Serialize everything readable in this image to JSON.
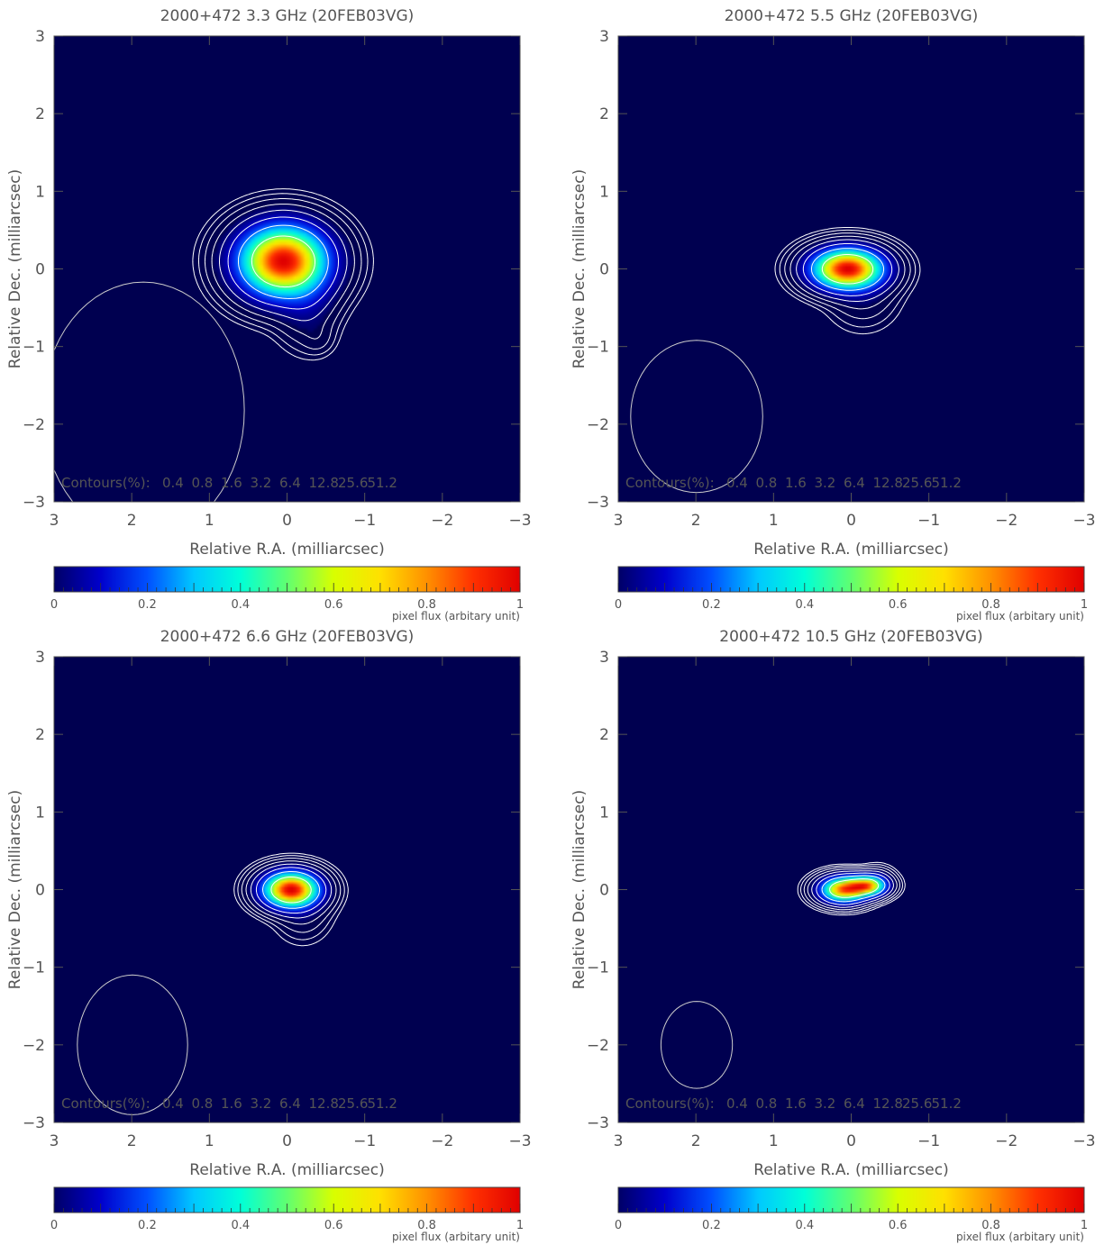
{
  "colorbar": {
    "ticks": [
      "0",
      "0.2",
      "0.4",
      "0.6",
      "0.8",
      "1"
    ],
    "label": "pixel flux (arbitary unit)",
    "stops": [
      "#000066",
      "#0000cc",
      "#0050ff",
      "#00c8ff",
      "#00ffd8",
      "#60ff70",
      "#d8ff00",
      "#ffe000",
      "#ff9000",
      "#ff3000",
      "#e00000"
    ]
  },
  "colors": {
    "background": "#000050",
    "contour": "#ffffff",
    "beam": "#cccccc",
    "text": "#555555"
  },
  "chart_data": [
    {
      "type": "heatmap",
      "title": "2000+472  3.3 GHz   (20FEB03VG)",
      "xlabel": "Relative R.A. (milliarcsec)",
      "ylabel": "Relative Dec. (milliarcsec)",
      "xlim": [
        3,
        -3
      ],
      "ylim": [
        -3,
        3
      ],
      "xticks": [
        "3",
        "2",
        "1",
        "0",
        "−1",
        "−2",
        "−3"
      ],
      "yticks": [
        "−3",
        "−2",
        "−1",
        "0",
        "1",
        "2",
        "3"
      ],
      "contours_label": "Contours(%):",
      "contour_levels": [
        0.4,
        0.8,
        1.6,
        3.2,
        6.4,
        12.8,
        25.6,
        51.2
      ],
      "beam": {
        "ra": 1.85,
        "dec": -1.82,
        "a": 1.3,
        "b": 1.65
      },
      "components": [
        {
          "ra": 0.05,
          "dec": 0.1,
          "sa": 0.35,
          "sd": 0.28,
          "amp": 1.0
        },
        {
          "ra": -0.25,
          "dec": -0.45,
          "sa": 0.22,
          "sd": 0.3,
          "amp": 0.06
        },
        {
          "ra": -0.4,
          "dec": -0.9,
          "sa": 0.12,
          "sd": 0.12,
          "amp": 0.015
        }
      ]
    },
    {
      "type": "heatmap",
      "title": "2000+472  5.5 GHz   (20FEB03VG)",
      "xlabel": "Relative R.A. (milliarcsec)",
      "ylabel": "Relative Dec. (milliarcsec)",
      "xlim": [
        3,
        -3
      ],
      "ylim": [
        -3,
        3
      ],
      "xticks": [
        "3",
        "2",
        "1",
        "0",
        "−1",
        "−2",
        "−3"
      ],
      "yticks": [
        "−3",
        "−2",
        "−1",
        "0",
        "1",
        "2",
        "3"
      ],
      "contours_label": "Contours(%):",
      "contour_levels": [
        0.4,
        0.8,
        1.6,
        3.2,
        6.4,
        12.8,
        25.6,
        51.2
      ],
      "beam": {
        "ra": 1.99,
        "dec": -1.9,
        "a": 0.85,
        "b": 0.98
      },
      "components": [
        {
          "ra": 0.05,
          "dec": 0.0,
          "sa": 0.28,
          "sd": 0.16,
          "amp": 1.0
        },
        {
          "ra": -0.15,
          "dec": -0.3,
          "sa": 0.25,
          "sd": 0.25,
          "amp": 0.04
        }
      ]
    },
    {
      "type": "heatmap",
      "title": "2000+472  6.6 GHz   (20FEB03VG)",
      "xlabel": "Relative R.A. (milliarcsec)",
      "ylabel": "Relative Dec. (milliarcsec)",
      "xlim": [
        3,
        -3
      ],
      "ylim": [
        -3,
        3
      ],
      "xticks": [
        "3",
        "2",
        "1",
        "0",
        "−1",
        "−2",
        "−3"
      ],
      "yticks": [
        "−3",
        "−2",
        "−1",
        "0",
        "1",
        "2",
        "3"
      ],
      "contours_label": "Contours(%):",
      "contour_levels": [
        0.4,
        0.8,
        1.6,
        3.2,
        6.4,
        12.8,
        25.6,
        51.2
      ],
      "beam": {
        "ra": 1.99,
        "dec": -2.0,
        "a": 0.71,
        "b": 0.9
      },
      "components": [
        {
          "ra": -0.05,
          "dec": 0.0,
          "sa": 0.22,
          "sd": 0.14,
          "amp": 1.0
        },
        {
          "ra": -0.2,
          "dec": -0.25,
          "sa": 0.2,
          "sd": 0.22,
          "amp": 0.04
        }
      ]
    },
    {
      "type": "heatmap",
      "title": "2000+472  10.5 GHz (20FEB03VG)",
      "xlabel": "Relative R.A. (milliarcsec)",
      "ylabel": "Relative Dec. (milliarcsec)",
      "xlim": [
        3,
        -3
      ],
      "ylim": [
        -3,
        3
      ],
      "xticks": [
        "3",
        "2",
        "1",
        "0",
        "−1",
        "−2",
        "−3"
      ],
      "yticks": [
        "−3",
        "−2",
        "−1",
        "0",
        "1",
        "2",
        "3"
      ],
      "contours_label": "Contours(%):",
      "contour_levels": [
        0.4,
        0.8,
        1.6,
        3.2,
        6.4,
        12.8,
        25.6,
        51.2
      ],
      "beam": {
        "ra": 1.99,
        "dec": -2.0,
        "a": 0.46,
        "b": 0.56
      },
      "components": [
        {
          "ra": 0.1,
          "dec": 0.0,
          "sa": 0.18,
          "sd": 0.1,
          "amp": 0.9
        },
        {
          "ra": -0.2,
          "dec": 0.05,
          "sa": 0.15,
          "sd": 0.08,
          "amp": 0.8
        },
        {
          "ra": -0.35,
          "dec": 0.12,
          "sa": 0.12,
          "sd": 0.1,
          "amp": 0.05
        }
      ]
    }
  ]
}
